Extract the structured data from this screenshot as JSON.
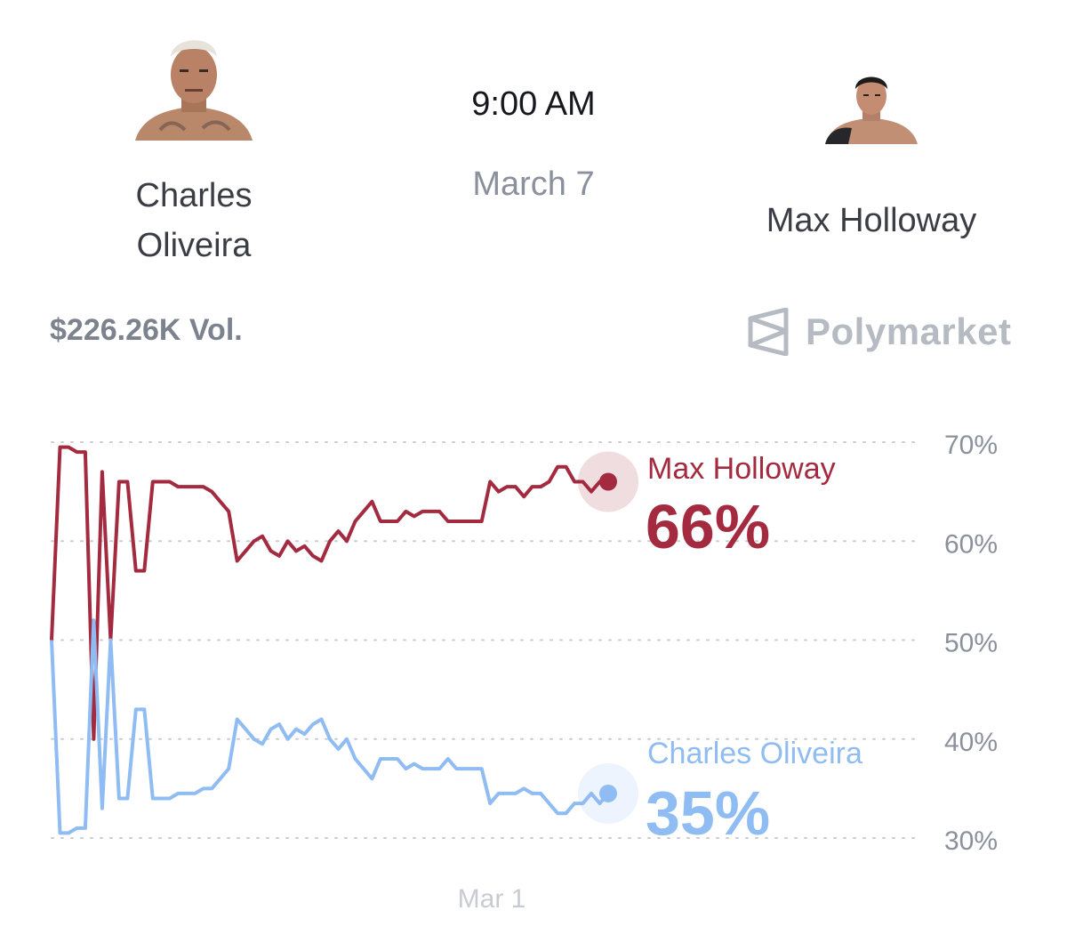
{
  "event": {
    "time": "9:00 AM",
    "date": "March 7"
  },
  "fighters": {
    "left": {
      "name_line1": "Charles",
      "name_line2": "Oliveira"
    },
    "right": {
      "name": "Max Holloway"
    }
  },
  "market": {
    "volume": "$226.26K Vol.",
    "brand": "Polymarket"
  },
  "colors": {
    "holloway": "#a32a3f",
    "oliveira": "#8fbcf2",
    "grid": "#c9ccd1"
  },
  "chart_data": {
    "type": "line",
    "x_tick_labels": [
      "Mar 1"
    ],
    "y_tick_labels": [
      "70%",
      "60%",
      "50%",
      "40%",
      "30%"
    ],
    "y_ticks": [
      70,
      60,
      50,
      40,
      30
    ],
    "ylim": [
      30,
      70
    ],
    "grid": "dotted horizontal",
    "series": [
      {
        "name": "Max Holloway",
        "label_value": "66%",
        "color": "#a32a3f",
        "values": [
          50,
          69.5,
          69.5,
          69,
          69,
          40,
          67,
          50,
          66,
          66,
          57,
          57,
          66,
          66,
          66,
          65.5,
          65.5,
          65.5,
          65.5,
          65,
          64,
          63,
          58,
          59,
          60,
          60.5,
          59,
          58.5,
          60,
          59,
          59.5,
          58.5,
          58,
          60,
          61,
          60,
          62,
          63,
          64,
          62,
          62,
          62,
          63,
          62.5,
          63,
          63,
          63,
          62,
          62,
          62,
          62,
          62,
          66,
          65,
          65.5,
          65.5,
          64.5,
          65.5,
          65.5,
          66,
          67.5,
          67.5,
          66,
          66,
          65,
          66,
          66
        ]
      },
      {
        "name": "Charles Oliveira",
        "label_value": "35%",
        "color": "#8fbcf2",
        "values": [
          50,
          30.5,
          30.5,
          31,
          31,
          52,
          33,
          50,
          34,
          34,
          43,
          43,
          34,
          34,
          34,
          34.5,
          34.5,
          34.5,
          35,
          35,
          36,
          37,
          42,
          41,
          40,
          39.5,
          41,
          41.5,
          40,
          41,
          40.5,
          41.5,
          42,
          40,
          39,
          40,
          38,
          37,
          36,
          38,
          38,
          38,
          37,
          37.5,
          37,
          37,
          37,
          38,
          37,
          37,
          37,
          37,
          33.5,
          34.5,
          34.5,
          34.5,
          35,
          34.5,
          34.5,
          33.5,
          32.5,
          32.5,
          33.5,
          33.5,
          34.5,
          33.5,
          34.5
        ]
      }
    ]
  }
}
